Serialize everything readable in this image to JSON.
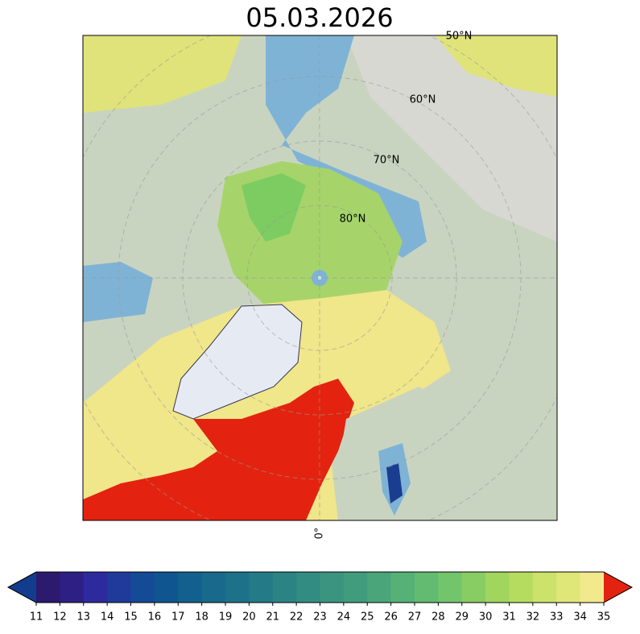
{
  "title": "05.03.2026",
  "map": {
    "lat_labels": [
      "50°N",
      "60°N",
      "70°N",
      "80°N"
    ],
    "lon_label": "0°"
  },
  "colorbar": {
    "ticks": [
      11,
      12,
      13,
      14,
      15,
      16,
      17,
      18,
      19,
      20,
      21,
      22,
      23,
      24,
      25,
      26,
      27,
      28,
      29,
      30,
      31,
      32,
      33,
      34,
      35
    ],
    "colors": [
      "#2b1a6e",
      "#2e1f85",
      "#2d2a9e",
      "#1f3a9a",
      "#144a96",
      "#0f5590",
      "#13608e",
      "#18698b",
      "#1d7189",
      "#247a87",
      "#2b8384",
      "#338c82",
      "#3a9480",
      "#419c7d",
      "#4aa67a",
      "#55b176",
      "#62bb71",
      "#73c56b",
      "#88cd63",
      "#a0d55e",
      "#b6dc5f",
      "#cde26a",
      "#e0e779",
      "#f2e98d"
    ],
    "under_color": "#143c8e",
    "over_color": "#e3230f"
  }
}
